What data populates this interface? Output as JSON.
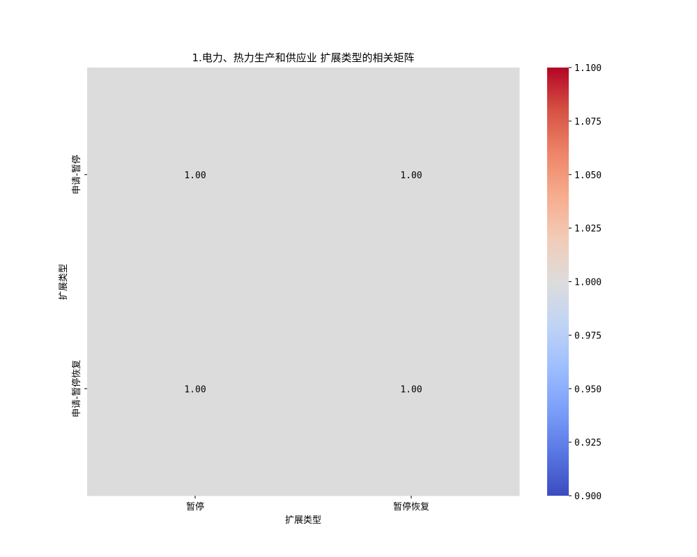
{
  "chart_data": {
    "type": "heatmap",
    "title": "1.电力、热力生产和供应业 扩展类型的相关矩阵",
    "xlabel": "扩展类型",
    "ylabel": "扩展类型",
    "x_categories": [
      "暂停",
      "暂停恢复"
    ],
    "y_categories": [
      "申请-暂停",
      "申请-暂停恢复"
    ],
    "values": [
      [
        1.0,
        1.0
      ],
      [
        1.0,
        1.0
      ]
    ],
    "cell_labels": [
      [
        "1.00",
        "1.00"
      ],
      [
        "1.00",
        "1.00"
      ]
    ],
    "colormap": "coolwarm",
    "cell_color": "#dcdcdc",
    "colorbar": {
      "range": [
        0.9,
        1.1
      ],
      "ticks": [
        0.9,
        0.925,
        0.95,
        0.975,
        1.0,
        1.025,
        1.05,
        1.075,
        1.1
      ],
      "tick_labels": [
        "0.900",
        "0.925",
        "0.950",
        "0.975",
        "1.000",
        "1.025",
        "1.050",
        "1.075",
        "1.100"
      ],
      "colors": [
        "#3b4cc0",
        "#5977e3",
        "#7b9ff9",
        "#9ebeff",
        "#c0d4f5",
        "#dddcdc",
        "#f2cbb7",
        "#f7ac8e",
        "#ee8468",
        "#d65244",
        "#b40426"
      ]
    },
    "grid": false
  }
}
